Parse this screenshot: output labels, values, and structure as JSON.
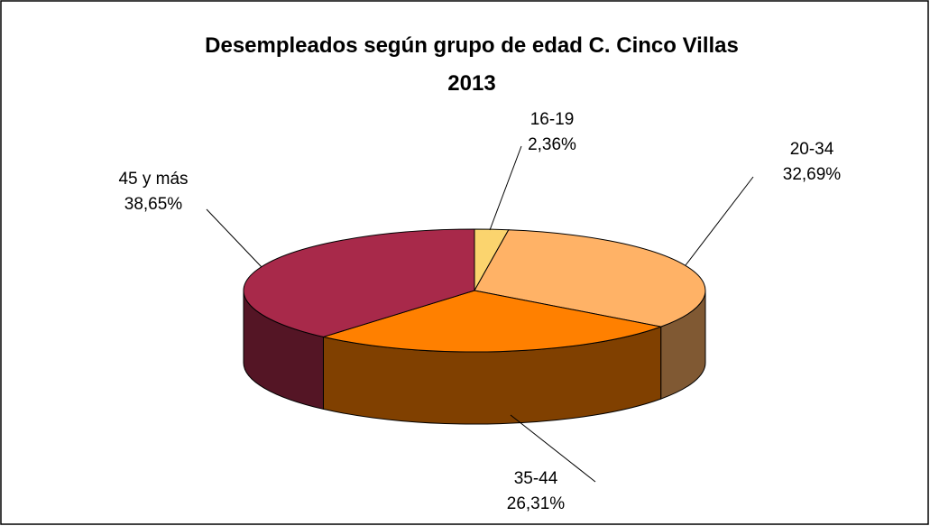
{
  "chart_data": {
    "type": "pie",
    "title": [
      "Desempleados según grupo de edad C. Cinco Villas",
      "2013"
    ],
    "categories": [
      "16-19",
      "20-34",
      "35-44",
      "45 y más"
    ],
    "values": [
      2.36,
      32.69,
      26.31,
      38.65
    ],
    "value_labels": [
      "2,36%",
      "32,69%",
      "26,31%",
      "38,65%"
    ],
    "colors": [
      "#fbd46e",
      "#ffb266",
      "#ff8000",
      "#a8294a"
    ]
  }
}
